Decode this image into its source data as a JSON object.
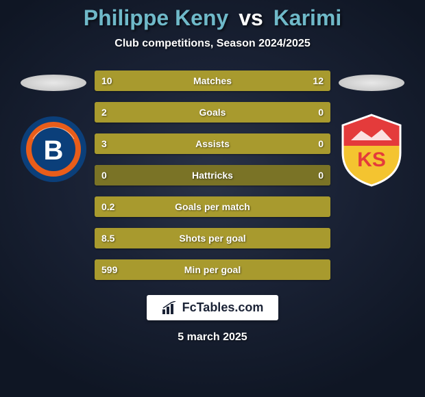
{
  "header": {
    "player1": "Philippe Keny",
    "vs": "vs",
    "player2": "Karimi",
    "title_color_p1": "#6fb9c9",
    "title_color_vs": "#ffffff",
    "title_color_p2": "#6fb9c9",
    "subtitle": "Club competitions, Season 2024/2025"
  },
  "colors": {
    "bar_active": "#a89a2e",
    "bar_inactive": "#7a7326",
    "bar_border": "#5c5720"
  },
  "stats": [
    {
      "label": "Matches",
      "left_val": "10",
      "right_val": "12",
      "left_pct": 45,
      "right_pct": 55,
      "left_active": true,
      "right_active": true
    },
    {
      "label": "Goals",
      "left_val": "2",
      "right_val": "0",
      "left_pct": 100,
      "right_pct": 0,
      "left_active": true,
      "right_active": false
    },
    {
      "label": "Assists",
      "left_val": "3",
      "right_val": "0",
      "left_pct": 100,
      "right_pct": 0,
      "left_active": true,
      "right_active": false
    },
    {
      "label": "Hattricks",
      "left_val": "0",
      "right_val": "0",
      "left_pct": 50,
      "right_pct": 50,
      "left_active": false,
      "right_active": false
    },
    {
      "label": "Goals per match",
      "left_val": "0.2",
      "right_val": "",
      "left_pct": 100,
      "right_pct": 0,
      "left_active": true,
      "right_active": false
    },
    {
      "label": "Shots per goal",
      "left_val": "8.5",
      "right_val": "",
      "left_pct": 100,
      "right_pct": 0,
      "left_active": true,
      "right_active": false
    },
    {
      "label": "Min per goal",
      "left_val": "599",
      "right_val": "",
      "left_pct": 100,
      "right_pct": 0,
      "left_active": true,
      "right_active": false
    }
  ],
  "clubs": {
    "left": {
      "name": "Istanbul Başakşehir",
      "ring_outer": "#0b3f7a",
      "ring_inner": "#e85d1a",
      "letter": "B",
      "letter_color": "#ffffff"
    },
    "right": {
      "name": "Kayserispor",
      "shield_top": "#e43b3b",
      "shield_bottom": "#f4c430",
      "letters": "KS",
      "letter_color": "#ffffff"
    }
  },
  "footer": {
    "brand": "FcTables.com",
    "date": "5 march 2025"
  }
}
